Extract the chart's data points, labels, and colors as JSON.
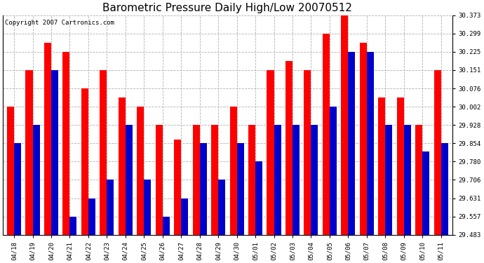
{
  "title": "Barometric Pressure Daily High/Low 20070512",
  "copyright": "Copyright 2007 Cartronics.com",
  "dates": [
    "04/18",
    "04/19",
    "04/20",
    "04/21",
    "04/22",
    "04/23",
    "04/24",
    "04/25",
    "04/26",
    "04/27",
    "04/28",
    "04/29",
    "04/30",
    "05/01",
    "05/02",
    "05/03",
    "05/04",
    "05/05",
    "05/06",
    "05/07",
    "05/08",
    "05/09",
    "05/10",
    "05/11"
  ],
  "high": [
    30.002,
    30.151,
    30.262,
    30.225,
    30.076,
    30.151,
    30.04,
    30.002,
    29.928,
    29.87,
    29.928,
    29.928,
    30.002,
    29.928,
    30.151,
    30.188,
    30.151,
    30.299,
    30.373,
    30.262,
    30.04,
    30.04,
    29.928,
    30.151
  ],
  "low": [
    29.854,
    29.928,
    30.151,
    29.557,
    29.631,
    29.706,
    29.928,
    29.706,
    29.557,
    29.631,
    29.854,
    29.706,
    29.854,
    29.78,
    29.928,
    29.928,
    29.928,
    30.002,
    30.225,
    30.225,
    29.928,
    29.928,
    29.82,
    29.854
  ],
  "ylim_min": 29.483,
  "ylim_max": 30.373,
  "yticks": [
    29.483,
    29.557,
    29.631,
    29.706,
    29.78,
    29.854,
    29.928,
    30.002,
    30.076,
    30.151,
    30.225,
    30.299,
    30.373
  ],
  "bar_width": 0.38,
  "high_color": "#ff0000",
  "low_color": "#0000cc",
  "bg_color": "#ffffff",
  "grid_color": "#b0b0b0",
  "title_fontsize": 11,
  "tick_fontsize": 6.5,
  "copyright_fontsize": 6.5
}
